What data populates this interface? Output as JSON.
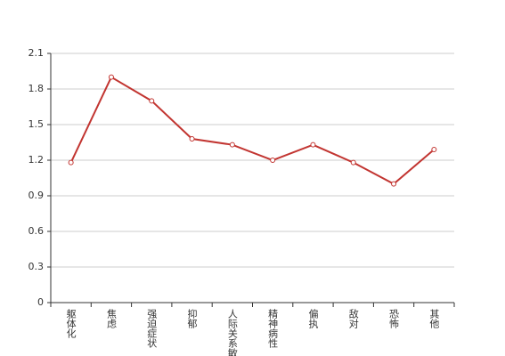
{
  "chart_data": {
    "type": "line",
    "categories": [
      "躯体化",
      "焦虑",
      "强迫症状",
      "抑郁",
      "人际关系敏感",
      "精神病性",
      "偏执",
      "敌对",
      "恐怖",
      "其他"
    ],
    "values": [
      1.18,
      1.9,
      1.7,
      1.38,
      1.33,
      1.2,
      1.33,
      1.18,
      1.0,
      1.29
    ],
    "color": "#c23531",
    "ylim": [
      0,
      2.1
    ],
    "yticks": [
      0,
      0.3,
      0.6,
      0.9,
      1.2,
      1.5,
      1.8,
      2.1
    ],
    "grid": true
  }
}
